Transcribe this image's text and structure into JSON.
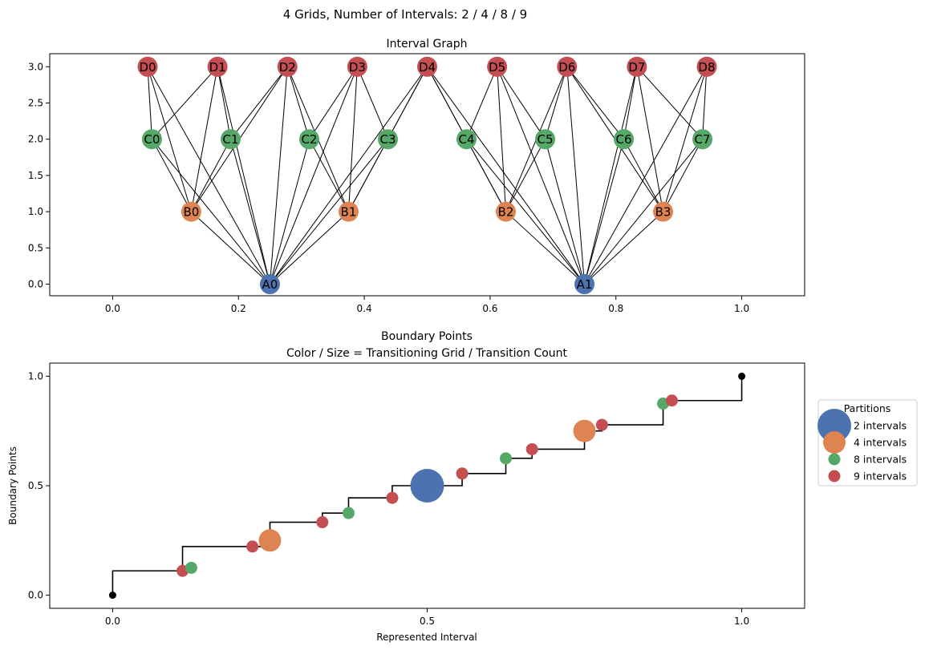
{
  "figure": {
    "suptitle": "4 Grids, Number of Intervals: 2 / 4 / 8 / 9"
  },
  "colors": {
    "grid_2": "#4C72B0",
    "grid_4": "#DD8452",
    "grid_8": "#55A868",
    "grid_9": "#C44E52",
    "edge": "#000000",
    "endpoint": "#000000"
  },
  "chart_data": [
    {
      "type": "scatter",
      "subtype": "interval-graph",
      "title": "Interval Graph",
      "xlabel": "",
      "ylabel": "",
      "xlim": [
        -0.1,
        1.1
      ],
      "ylim": [
        -0.16,
        3.18
      ],
      "xticks": [
        0.0,
        0.2,
        0.4,
        0.6,
        0.8,
        1.0
      ],
      "xtick_labels": [
        "0.0",
        "0.2",
        "0.4",
        "0.6",
        "0.8",
        "1.0"
      ],
      "yticks": [
        0.0,
        0.5,
        1.0,
        1.5,
        2.0,
        2.5,
        3.0
      ],
      "ytick_labels": [
        "0.0",
        "0.5",
        "1.0",
        "1.5",
        "2.0",
        "2.5",
        "3.0"
      ],
      "grid": false,
      "nodes": [
        {
          "label": "A0",
          "x": 0.25,
          "y": 0,
          "level": 0
        },
        {
          "label": "A1",
          "x": 0.75,
          "y": 0,
          "level": 0
        },
        {
          "label": "B0",
          "x": 0.125,
          "y": 1,
          "level": 1
        },
        {
          "label": "B1",
          "x": 0.375,
          "y": 1,
          "level": 1
        },
        {
          "label": "B2",
          "x": 0.625,
          "y": 1,
          "level": 1
        },
        {
          "label": "B3",
          "x": 0.875,
          "y": 1,
          "level": 1
        },
        {
          "label": "C0",
          "x": 0.0625,
          "y": 2,
          "level": 2
        },
        {
          "label": "C1",
          "x": 0.1875,
          "y": 2,
          "level": 2
        },
        {
          "label": "C2",
          "x": 0.3125,
          "y": 2,
          "level": 2
        },
        {
          "label": "C3",
          "x": 0.4375,
          "y": 2,
          "level": 2
        },
        {
          "label": "C4",
          "x": 0.5625,
          "y": 2,
          "level": 2
        },
        {
          "label": "C5",
          "x": 0.6875,
          "y": 2,
          "level": 2
        },
        {
          "label": "C6",
          "x": 0.8125,
          "y": 2,
          "level": 2
        },
        {
          "label": "C7",
          "x": 0.9375,
          "y": 2,
          "level": 2
        },
        {
          "label": "D0",
          "x": 0.0556,
          "y": 3,
          "level": 3
        },
        {
          "label": "D1",
          "x": 0.1667,
          "y": 3,
          "level": 3
        },
        {
          "label": "D2",
          "x": 0.2778,
          "y": 3,
          "level": 3
        },
        {
          "label": "D3",
          "x": 0.3889,
          "y": 3,
          "level": 3
        },
        {
          "label": "D4",
          "x": 0.5,
          "y": 3,
          "level": 3
        },
        {
          "label": "D5",
          "x": 0.6111,
          "y": 3,
          "level": 3
        },
        {
          "label": "D6",
          "x": 0.7222,
          "y": 3,
          "level": 3
        },
        {
          "label": "D7",
          "x": 0.8333,
          "y": 3,
          "level": 3
        },
        {
          "label": "D8",
          "x": 0.9444,
          "y": 3,
          "level": 3
        }
      ]
    },
    {
      "type": "scatter",
      "subtype": "step-with-boundary-points",
      "title": "Boundary Points",
      "subtitle": "Color / Size = Transitioning Grid / Transition Count",
      "xlabel": "Represented Interval",
      "ylabel": "Boundary Points",
      "xlim": [
        -0.2,
        2.2
      ],
      "ylim": [
        -0.06,
        1.06
      ],
      "xticks": [
        0,
        1,
        2
      ],
      "xtick_labels": [
        "0.0",
        "0.5",
        "1.0"
      ],
      "yticks": [
        0.0,
        0.5,
        1.0
      ],
      "ytick_labels": [
        "0.0",
        "0.5",
        "1.0"
      ],
      "grid": false,
      "legend": {
        "title": "Partitions",
        "placement": "outside-right",
        "entries": [
          "2 intervals",
          "4 intervals",
          "8 intervals",
          "9 intervals"
        ]
      },
      "steps": [
        {
          "x0": 0,
          "x1": 0.2222,
          "y": 0.1111
        },
        {
          "x0": 0.2222,
          "x1": 0.5,
          "y": 0.2222
        },
        {
          "x0": 0.5,
          "x1": 0.6667,
          "y": 0.3333
        },
        {
          "x0": 0.6667,
          "x1": 0.75,
          "y": 0.375
        },
        {
          "x0": 0.75,
          "x1": 0.8889,
          "y": 0.4444
        },
        {
          "x0": 0.8889,
          "x1": 1.1111,
          "y": 0.5
        },
        {
          "x0": 1.1111,
          "x1": 1.25,
          "y": 0.5556
        },
        {
          "x0": 1.25,
          "x1": 1.3333,
          "y": 0.625
        },
        {
          "x0": 1.3333,
          "x1": 1.5,
          "y": 0.6667
        },
        {
          "x0": 1.5,
          "x1": 1.5556,
          "y": 0.75
        },
        {
          "x0": 1.5556,
          "x1": 1.75,
          "y": 0.7778
        },
        {
          "x0": 1.75,
          "x1": 1.7778,
          "y": 0.875
        },
        {
          "x0": 1.7778,
          "x1": 2,
          "y": 0.8889
        },
        {
          "x0": 2,
          "x1": 2,
          "y": 1.0
        }
      ],
      "endpoints": [
        {
          "x": 0,
          "y": 0.0
        },
        {
          "x": 2,
          "y": 1.0
        }
      ],
      "points": [
        {
          "x": 0.2222,
          "y": 0.1111,
          "grid": 9
        },
        {
          "x": 0.25,
          "y": 0.125,
          "grid": 8
        },
        {
          "x": 0.4444,
          "y": 0.2222,
          "grid": 9
        },
        {
          "x": 0.5,
          "y": 0.25,
          "grid": 4
        },
        {
          "x": 0.6667,
          "y": 0.3333,
          "grid": 9
        },
        {
          "x": 0.75,
          "y": 0.375,
          "grid": 8
        },
        {
          "x": 0.8889,
          "y": 0.4444,
          "grid": 9
        },
        {
          "x": 1.0,
          "y": 0.5,
          "grid": 2
        },
        {
          "x": 1.1111,
          "y": 0.5556,
          "grid": 9
        },
        {
          "x": 1.25,
          "y": 0.625,
          "grid": 8
        },
        {
          "x": 1.3333,
          "y": 0.6667,
          "grid": 9
        },
        {
          "x": 1.5,
          "y": 0.75,
          "grid": 4
        },
        {
          "x": 1.5556,
          "y": 0.7778,
          "grid": 9
        },
        {
          "x": 1.75,
          "y": 0.875,
          "grid": 8
        },
        {
          "x": 1.7778,
          "y": 0.8889,
          "grid": 9
        }
      ]
    }
  ]
}
